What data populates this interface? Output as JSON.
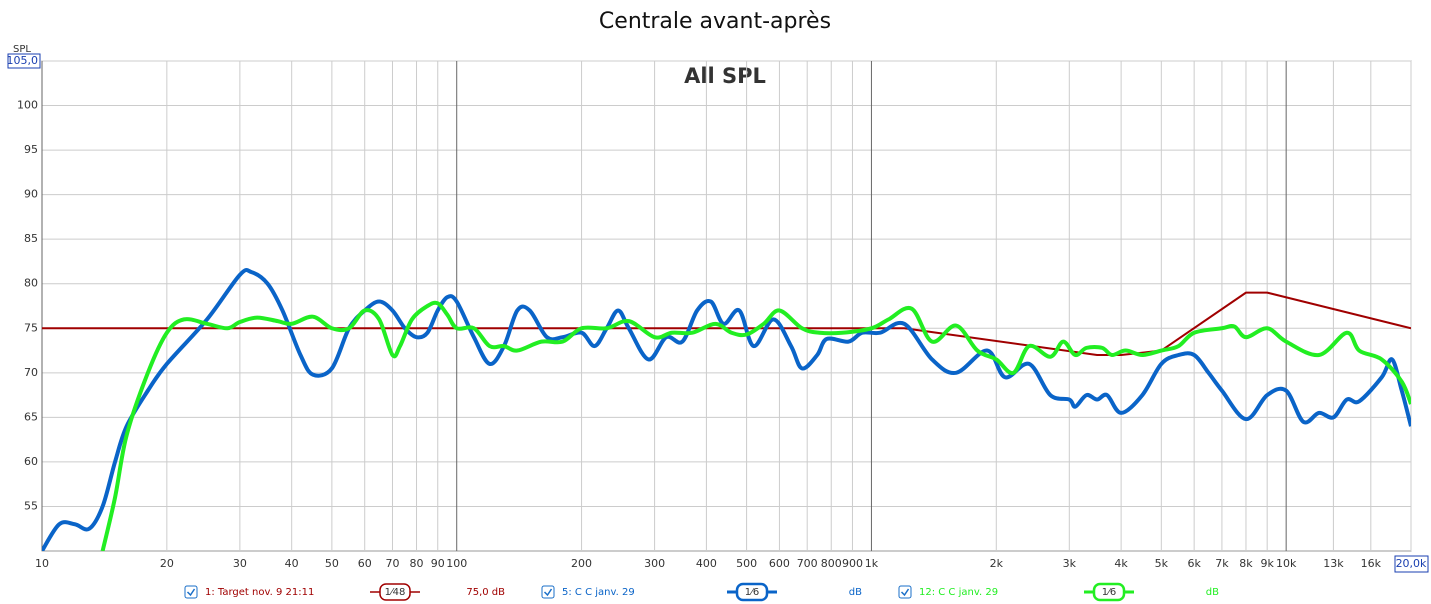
{
  "chart_data": {
    "type": "line",
    "title": "Centrale avant-après",
    "annotation": "All SPL",
    "y_label": "SPL",
    "log_x": true,
    "grid": true,
    "xlim": [
      10,
      20000
    ],
    "ylim": [
      50,
      105
    ],
    "xticks": [
      10,
      20,
      30,
      40,
      50,
      60,
      70,
      80,
      90,
      100,
      200,
      300,
      400,
      500,
      600,
      700,
      800,
      {
        "value": 900,
        "label": "900"
      },
      {
        "value": 1000,
        "label": "1k"
      },
      {
        "value": 2000,
        "label": "2k"
      },
      {
        "value": 3000,
        "label": "3k"
      },
      {
        "value": 4000,
        "label": "4k"
      },
      {
        "value": 5000,
        "label": "5k"
      },
      {
        "value": 6000,
        "label": "6k"
      },
      {
        "value": 7000,
        "label": "7k"
      },
      {
        "value": 8000,
        "label": "8k"
      },
      {
        "value": 9000,
        "label": "9k"
      },
      {
        "value": 10000,
        "label": "10k"
      },
      {
        "value": 13000,
        "label": "13k"
      },
      {
        "value": 16000,
        "label": "16k"
      },
      {
        "value": 20000,
        "label": "20,0k"
      }
    ],
    "yticks": [
      55,
      60,
      65,
      70,
      75,
      80,
      85,
      90,
      95,
      100,
      {
        "value": 105,
        "label": "105,0"
      }
    ],
    "series": [
      {
        "name": "1: Target nov. 9 21:11",
        "smoothing": "1⁄48",
        "offset_label": "75,0 dB",
        "color": "#a00000",
        "x": [
          10,
          1200,
          3500,
          4000,
          5000,
          8000,
          9000,
          20000
        ],
        "values": [
          75,
          75,
          72,
          72,
          72.5,
          79,
          79,
          75
        ]
      },
      {
        "name": "5: C C janv. 29",
        "smoothing": "1⁄6",
        "offset_label": "dB",
        "color": "#0a64c8",
        "x": [
          10,
          11,
          12,
          13,
          14,
          15,
          16,
          18,
          20,
          25,
          30,
          32,
          35,
          38,
          42,
          45,
          50,
          55,
          60,
          65,
          70,
          75,
          80,
          85,
          90,
          95,
          100,
          110,
          120,
          130,
          140,
          150,
          165,
          180,
          200,
          215,
          230,
          245,
          260,
          290,
          320,
          350,
          380,
          410,
          440,
          480,
          520,
          580,
          640,
          680,
          740,
          780,
          880,
          950,
          1050,
          1200,
          1400,
          1600,
          1900,
          2100,
          2400,
          2700,
          3000,
          3100,
          3300,
          3500,
          3700,
          4000,
          4500,
          5000,
          5500,
          6000,
          6500,
          7000,
          8000,
          9000,
          10000,
          11000,
          12000,
          13000,
          14000,
          15000,
          17000,
          18000,
          19000,
          20000
        ],
        "values": [
          50,
          53,
          53,
          52.5,
          55,
          60,
          64,
          68,
          71,
          76,
          81,
          81.3,
          80,
          77,
          72,
          69.8,
          70.5,
          75,
          77,
          78,
          77,
          75,
          74,
          74.5,
          77,
          78.5,
          78,
          74,
          71,
          73,
          77,
          77,
          74,
          74,
          74.5,
          73,
          75,
          77,
          75,
          71.5,
          74,
          73.5,
          77,
          78,
          75.5,
          77,
          73,
          76,
          73,
          70.5,
          72,
          73.8,
          73.5,
          74.5,
          74.5,
          75.5,
          71.5,
          70,
          72.5,
          69.5,
          71,
          67.5,
          67,
          66.2,
          67.5,
          67,
          67.5,
          65.5,
          67.5,
          71,
          72,
          72,
          70,
          68,
          64.8,
          67.5,
          68,
          64.5,
          65.5,
          65,
          67,
          66.8,
          69.5,
          71.5,
          68,
          64
        ]
      },
      {
        "name": "12: C C janv. 29",
        "smoothing": "1⁄6",
        "offset_label": "dB",
        "color": "#22ee22",
        "x": [
          14,
          15,
          16,
          18,
          20,
          22,
          25,
          28,
          30,
          33,
          37,
          40,
          45,
          50,
          55,
          60,
          65,
          70,
          73,
          78,
          85,
          90,
          95,
          100,
          110,
          120,
          130,
          140,
          160,
          180,
          200,
          230,
          260,
          300,
          330,
          370,
          420,
          460,
          500,
          550,
          600,
          680,
          750,
          850,
          1000,
          1100,
          1250,
          1400,
          1600,
          1800,
          2000,
          2200,
          2400,
          2700,
          2900,
          3100,
          3300,
          3600,
          3800,
          4100,
          4500,
          5000,
          5500,
          6000,
          7000,
          7500,
          8000,
          9000,
          10000,
          12000,
          14000,
          15000,
          17000,
          19000,
          20000
        ],
        "values": [
          50,
          56,
          63,
          70,
          74.5,
          76,
          75.5,
          75,
          75.7,
          76.2,
          75.8,
          75.5,
          76.3,
          75,
          75,
          77,
          76,
          72,
          73,
          76,
          77.5,
          77.8,
          76.5,
          75,
          75,
          73,
          73,
          72.5,
          73.5,
          73.5,
          75,
          75,
          75.8,
          74,
          74.5,
          74.5,
          75.5,
          74.5,
          74.3,
          75.5,
          77,
          75,
          74.5,
          74.5,
          75,
          76,
          77.2,
          73.5,
          75.3,
          72.5,
          71.5,
          70,
          73,
          71.8,
          73.5,
          72,
          72.8,
          72.8,
          72,
          72.5,
          72,
          72.5,
          73,
          74.5,
          75,
          75.2,
          74,
          75,
          73.5,
          72,
          74.5,
          72.5,
          71.5,
          69,
          66.5
        ]
      }
    ]
  }
}
